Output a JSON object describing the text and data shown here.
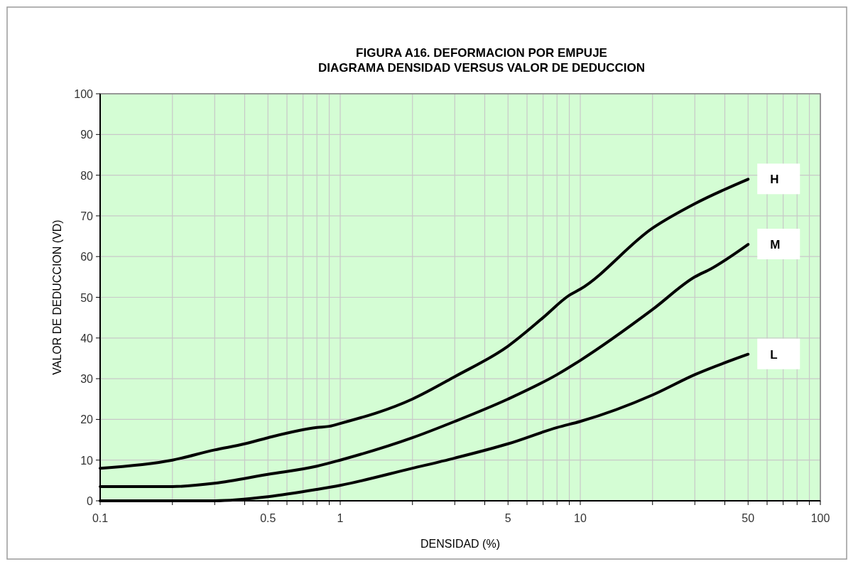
{
  "chart_data": {
    "type": "line",
    "title": "FIGURA A16. DEFORMACION POR EMPUJE",
    "subtitle": "DIAGRAMA DENSIDAD VERSUS VALOR DE DEDUCCION",
    "xlabel": "DENSIDAD  (%)",
    "ylabel": "VALOR DE DEDUCCION  (VD)",
    "log": "x",
    "grid": true,
    "marker": "none",
    "line_style": "solid",
    "xlim": [
      0.1,
      100
    ],
    "ylim": [
      0,
      100
    ],
    "yticks": [
      0,
      10,
      20,
      30,
      40,
      50,
      60,
      70,
      80,
      90,
      100
    ],
    "xticks": [
      0.1,
      {
        "value": 0.2,
        "label": null
      },
      {
        "value": 0.3,
        "label": null
      },
      {
        "value": 0.4,
        "label": null
      },
      0.5,
      {
        "value": 0.6,
        "label": null
      },
      {
        "value": 0.7,
        "label": null
      },
      {
        "value": 0.8,
        "label": null
      },
      {
        "value": 0.9,
        "label": null
      },
      1,
      {
        "value": 2,
        "label": null
      },
      {
        "value": 3,
        "label": null
      },
      {
        "value": 4,
        "label": null
      },
      5,
      {
        "value": 6,
        "label": null
      },
      {
        "value": 7,
        "label": null
      },
      {
        "value": 8,
        "label": null
      },
      {
        "value": 9,
        "label": null
      },
      10,
      {
        "value": 20,
        "label": null
      },
      {
        "value": 30,
        "label": null
      },
      {
        "value": 40,
        "label": null
      },
      50,
      {
        "value": 60,
        "label": null
      },
      {
        "value": 70,
        "label": null
      },
      {
        "value": 80,
        "label": null
      },
      {
        "value": 90,
        "label": null
      },
      100
    ],
    "series": [
      {
        "name": "H",
        "color": "#000000",
        "x": [
          0.1,
          0.2,
          0.3,
          0.4,
          0.5,
          0.8,
          0.9,
          1,
          2,
          3,
          5,
          7,
          9,
          10,
          20,
          30,
          50
        ],
        "values": [
          8,
          10,
          12.5,
          14,
          15.5,
          18,
          18.3,
          19,
          25,
          30.5,
          38,
          45,
          50.5,
          52,
          67,
          73,
          79
        ]
      },
      {
        "name": "M",
        "color": "#000000",
        "x": [
          0.1,
          0.2,
          0.3,
          0.5,
          0.8,
          1,
          2,
          3,
          5,
          8,
          10,
          20,
          30,
          35,
          50
        ],
        "values": [
          3.5,
          3.5,
          4.3,
          6.5,
          8.5,
          10,
          15.5,
          19.5,
          25,
          31,
          34.5,
          47,
          55,
          57,
          63
        ]
      },
      {
        "name": "L",
        "color": "#000000",
        "x": [
          0.1,
          0.3,
          0.5,
          0.8,
          1,
          2,
          3,
          5,
          8,
          10,
          20,
          30,
          50
        ],
        "values": [
          0,
          0,
          1,
          2.8,
          3.8,
          8,
          10.5,
          14,
          18,
          19.5,
          26,
          31,
          36
        ]
      }
    ]
  }
}
